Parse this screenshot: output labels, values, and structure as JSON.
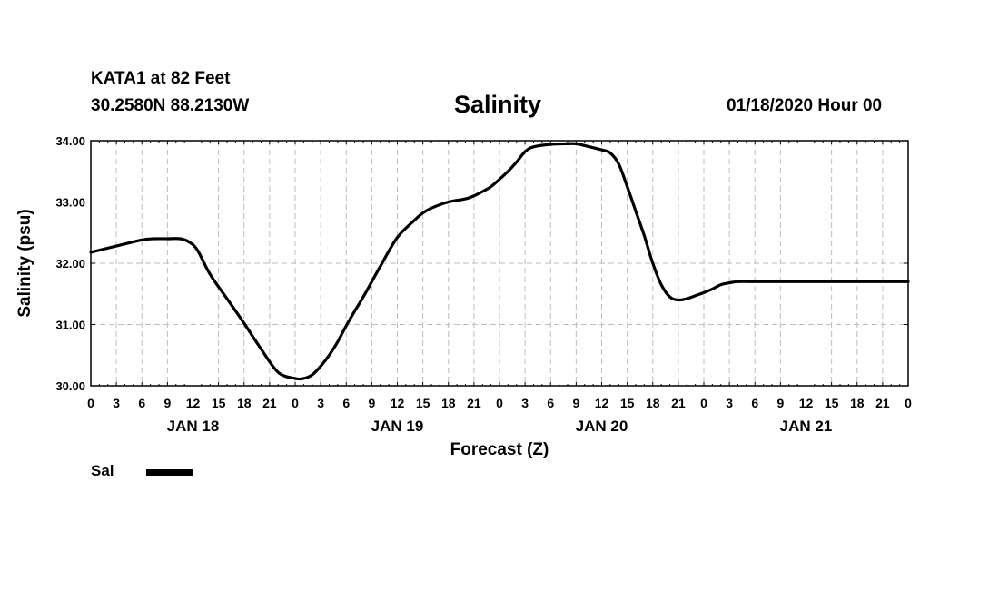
{
  "header": {
    "station": "KATA1 at 82 Feet",
    "coords": "30.2580N 88.2130W",
    "title": "Salinity",
    "run_time": "01/18/2020 Hour 00"
  },
  "legend": {
    "label": "Sal"
  },
  "chart_data": {
    "type": "line",
    "title": "Salinity",
    "xlabel": "Forecast (Z)",
    "ylabel": "Salinity (psu)",
    "ylim": [
      30.0,
      34.0
    ],
    "xlim": [
      0,
      96
    ],
    "yticks": [
      "30.00",
      "31.00",
      "32.00",
      "33.00",
      "34.00"
    ],
    "xtick_labels": [
      "0",
      "3",
      "6",
      "9",
      "12",
      "15",
      "18",
      "21",
      "0",
      "3",
      "6",
      "9",
      "12",
      "15",
      "18",
      "21",
      "0",
      "3",
      "6",
      "9",
      "12",
      "15",
      "18",
      "21",
      "0",
      "3",
      "6",
      "9",
      "12",
      "15",
      "18",
      "21",
      "0"
    ],
    "day_labels": [
      {
        "hour": 12,
        "label": "JAN 18"
      },
      {
        "hour": 36,
        "label": "JAN 19"
      },
      {
        "hour": 60,
        "label": "JAN 20"
      },
      {
        "hour": 84,
        "label": "JAN 21"
      }
    ],
    "grid": true,
    "series": [
      {
        "name": "Sal",
        "x": [
          0,
          3,
          6,
          7.5,
          9,
          10.5,
          11.5,
          12.5,
          14,
          16,
          18,
          20,
          22,
          24,
          25,
          26,
          27,
          28,
          29,
          30,
          31,
          32,
          33,
          34,
          36,
          38,
          39,
          40,
          42,
          44,
          45,
          46,
          47,
          48,
          49,
          50,
          51,
          52,
          54,
          56,
          57,
          58,
          60,
          61,
          62,
          63,
          64,
          65,
          66,
          67,
          68,
          69,
          70,
          71,
          72,
          73,
          74,
          75,
          76,
          78,
          80,
          81,
          82,
          83,
          84,
          85,
          86,
          87,
          87.5,
          88,
          89,
          90,
          91,
          92,
          93,
          94,
          95,
          96
        ],
        "values": [
          32.18,
          32.28,
          32.38,
          32.4,
          32.4,
          32.4,
          32.35,
          32.22,
          31.82,
          31.42,
          31.02,
          30.6,
          30.22,
          30.12,
          30.12,
          30.18,
          30.32,
          30.5,
          30.72,
          30.98,
          31.22,
          31.45,
          31.7,
          31.95,
          32.42,
          32.7,
          32.82,
          32.9,
          33.0,
          33.05,
          33.1,
          33.17,
          33.25,
          33.37,
          33.5,
          33.65,
          33.82,
          33.9,
          33.94,
          33.95,
          33.95,
          33.92,
          33.85,
          33.8,
          33.62,
          33.25,
          32.85,
          32.45,
          32.0,
          31.65,
          31.45,
          31.4,
          31.42,
          31.47,
          31.52,
          31.58,
          31.65,
          31.68,
          31.7,
          31.7,
          31.7,
          31.7,
          31.7,
          31.7,
          31.7,
          31.7,
          31.7,
          31.7,
          31.7,
          31.7,
          31.7,
          31.7,
          31.7,
          31.7,
          31.7,
          31.7,
          31.7,
          31.7
        ]
      }
    ]
  }
}
